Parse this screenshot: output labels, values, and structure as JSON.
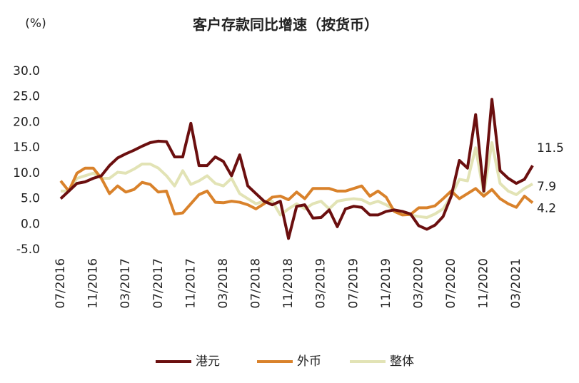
{
  "chart_data": {
    "type": "line",
    "title": "客户存款同比增速（按货币）",
    "y_unit": "(%)",
    "categories": [
      "07/2016",
      null,
      null,
      null,
      "11/2016",
      null,
      null,
      null,
      "03/2017",
      null,
      null,
      null,
      "07/2017",
      null,
      null,
      null,
      "11/2017",
      null,
      null,
      null,
      "03/2018",
      null,
      null,
      null,
      "07/2018",
      null,
      null,
      null,
      "11/2018",
      null,
      null,
      null,
      "03/2019",
      null,
      null,
      null,
      "07/2019",
      null,
      null,
      null,
      "11/2019",
      null,
      null,
      null,
      "03/2020",
      null,
      null,
      null,
      "07/2020",
      null,
      null,
      null,
      "11/2020",
      null,
      null,
      null,
      "03/2021",
      null,
      null
    ],
    "series": [
      {
        "name": "港元",
        "color": "#6b0f0f",
        "values": [
          5.0,
          6.5,
          8.0,
          8.3,
          9.0,
          9.5,
          11.5,
          13.0,
          13.8,
          14.5,
          15.3,
          16.0,
          16.3,
          16.2,
          13.2,
          13.2,
          19.8,
          11.5,
          11.5,
          13.2,
          12.3,
          9.5,
          13.6,
          7.5,
          6.0,
          4.5,
          3.8,
          4.5,
          -2.8,
          3.5,
          3.8,
          1.2,
          1.3,
          2.8,
          -0.5,
          3.0,
          3.5,
          3.3,
          1.8,
          1.8,
          2.5,
          2.8,
          2.5,
          2.0,
          -0.3,
          -1.0,
          -0.2,
          1.5,
          5.5,
          12.5,
          11.0,
          21.5,
          6.5,
          24.5,
          10.5,
          9.0,
          8.0,
          8.8,
          11.5
        ]
      },
      {
        "name": "外币",
        "color": "#d9822b",
        "values": [
          8.5,
          6.5,
          10.0,
          11.0,
          11.0,
          9.0,
          6.0,
          7.5,
          6.3,
          6.8,
          8.2,
          7.8,
          6.3,
          6.5,
          2.0,
          2.2,
          4.0,
          5.8,
          6.5,
          4.3,
          4.2,
          4.5,
          4.3,
          3.8,
          3.0,
          4.0,
          5.3,
          5.5,
          4.8,
          6.3,
          5.0,
          7.0,
          7.0,
          7.0,
          6.5,
          6.5,
          7.0,
          7.5,
          5.5,
          6.5,
          5.3,
          2.5,
          1.8,
          1.9,
          3.2,
          3.2,
          3.6,
          5.0,
          6.5,
          5.0,
          6.0,
          7.0,
          5.5,
          6.8,
          5.0,
          4.0,
          3.3,
          5.5,
          4.2
        ]
      },
      {
        "name": "整体",
        "color": "#e2e3b5",
        "values": [
          6.5,
          6.5,
          9.0,
          9.5,
          10.0,
          9.0,
          9.0,
          10.2,
          10.0,
          10.8,
          11.8,
          11.8,
          11.0,
          9.5,
          7.5,
          10.5,
          7.8,
          8.5,
          9.5,
          8.0,
          7.5,
          9.0,
          6.0,
          5.0,
          4.0,
          4.5,
          4.5,
          1.8,
          3.0,
          4.0,
          3.0,
          4.0,
          4.5,
          3.0,
          4.5,
          4.8,
          5.0,
          4.8,
          4.0,
          4.5,
          3.8,
          2.8,
          2.0,
          1.8,
          1.5,
          1.3,
          2.0,
          3.0,
          5.5,
          8.8,
          8.5,
          15.0,
          6.0,
          16.0,
          8.0,
          6.5,
          5.8,
          7.0,
          7.9
        ]
      }
    ],
    "ylim": [
      -5,
      30
    ],
    "yticks": [
      {
        "value": -5,
        "label": "-5.0"
      },
      {
        "value": 0,
        "label": "0.0"
      },
      {
        "value": 5,
        "label": "5.0"
      },
      {
        "value": 10,
        "label": "10.0"
      },
      {
        "value": 15,
        "label": "15.0"
      },
      {
        "value": 20,
        "label": "20.0"
      },
      {
        "value": 25,
        "label": "25.0"
      },
      {
        "value": 30,
        "label": "30.0"
      }
    ],
    "grid": false,
    "legend": "bottom"
  }
}
